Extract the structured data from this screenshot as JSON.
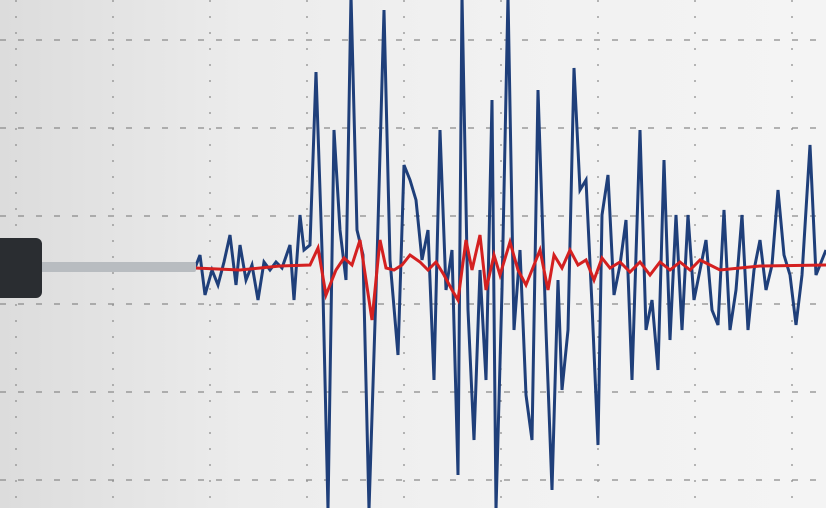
{
  "image": {
    "subject": "seismograph",
    "colors": {
      "paper": "#efefef",
      "grid": "#8a8a8a",
      "primary_trace": "#1f3f7a",
      "secondary_trace": "#d42020",
      "stylus_body": "#2a2d31",
      "stylus_rod": "#b8bcc0"
    }
  }
}
